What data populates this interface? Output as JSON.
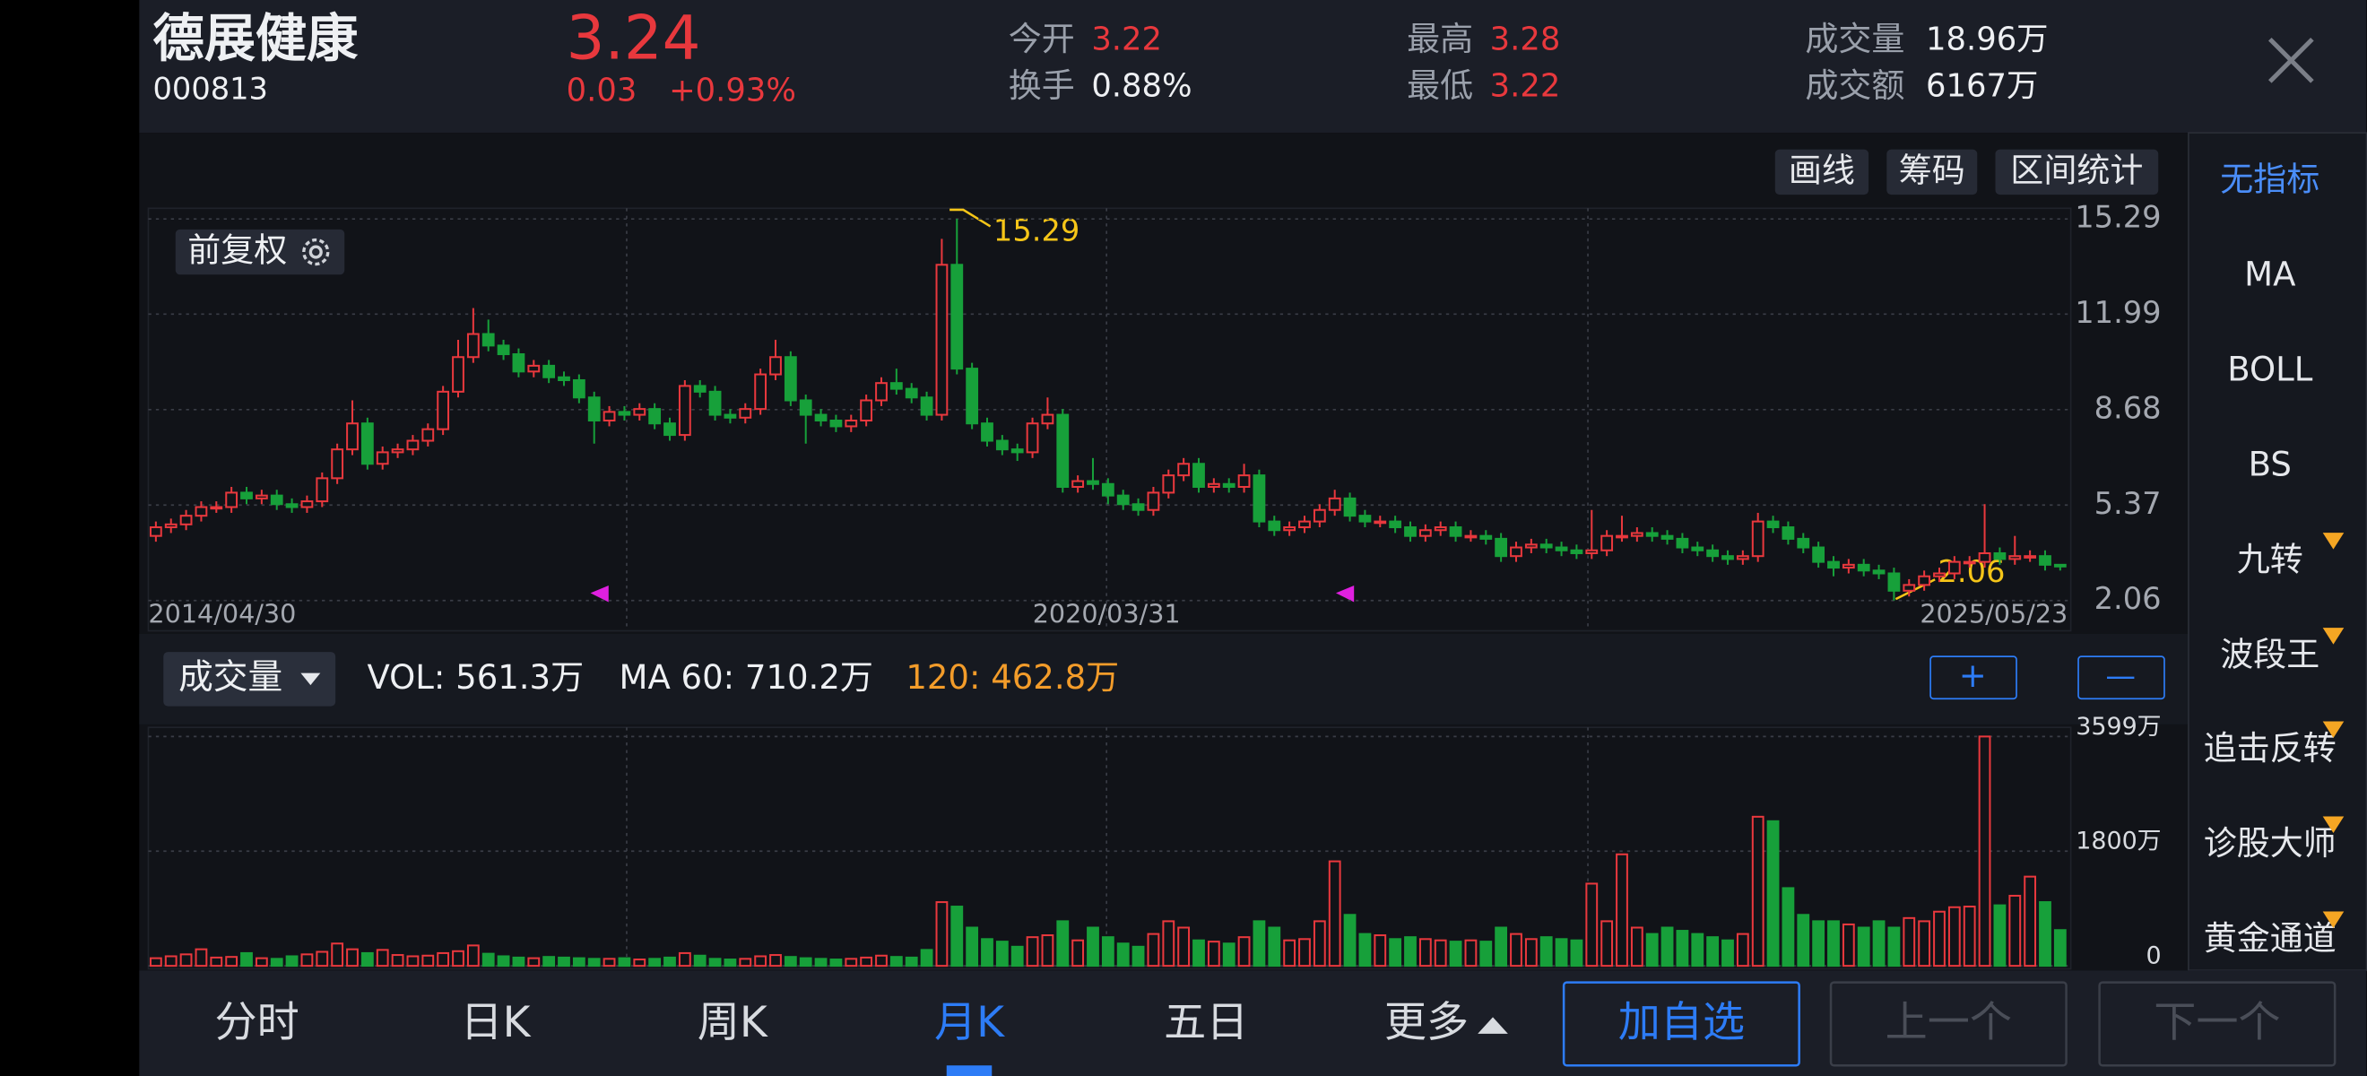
{
  "header": {
    "name": "德展健康",
    "code": "000813",
    "price": "3.24",
    "change": "0.03",
    "change_pct": "+0.93%",
    "stats": [
      {
        "label": "今开",
        "value": "3.22"
      },
      {
        "label": "换手",
        "value": "0.88%"
      },
      {
        "label": "最高",
        "value": "3.28"
      },
      {
        "label": "最低",
        "value": "3.22"
      },
      {
        "label": "成交量",
        "value": "18.96万"
      },
      {
        "label": "成交额",
        "value": "6167万"
      }
    ]
  },
  "toolbar": [
    "画线",
    "筹码",
    "区间统计"
  ],
  "adjust_button": "前复权",
  "indicators": [
    "无指标",
    "MA",
    "BOLL",
    "BS",
    "九转",
    "波段王",
    "追击反转",
    "诊股大师",
    "黄金通道"
  ],
  "volume_header": {
    "selector": "成交量",
    "vol": "VOL: 561.3万",
    "ma60": "MA 60: 710.2万",
    "ma120": "120: 462.8万"
  },
  "volume_controls": [
    "+",
    "—"
  ],
  "tabs": [
    "分时",
    "日K",
    "周K",
    "月K",
    "五日",
    "更多"
  ],
  "actions": [
    "加自选",
    "上一个",
    "下一个"
  ],
  "chart_data": [
    {
      "type": "candlestick",
      "up_color": "#e8383d",
      "down_color": "#17a03a",
      "grid": true,
      "ylim": [
        1.01,
        15.66
      ],
      "yticks": [
        15.29,
        11.99,
        8.68,
        5.37,
        2.06
      ],
      "x_labels": [
        "2014/04/30",
        "2020/03/31",
        "2025/05/23"
      ],
      "annotations": [
        "15.29",
        "2.06"
      ],
      "open": [
        4.3,
        4.6,
        4.7,
        5.0,
        5.3,
        5.3,
        5.8,
        5.6,
        5.7,
        5.4,
        5.3,
        5.5,
        6.3,
        7.3,
        8.2,
        6.8,
        7.2,
        7.3,
        7.6,
        8.0,
        9.3,
        10.5,
        11.3,
        10.9,
        10.6,
        10.0,
        10.2,
        9.8,
        9.7,
        9.1,
        8.3,
        8.6,
        8.5,
        8.7,
        8.2,
        7.8,
        9.5,
        9.3,
        8.5,
        8.4,
        8.7,
        9.9,
        10.5,
        9.0,
        8.5,
        8.3,
        8.1,
        8.3,
        9.0,
        9.6,
        9.4,
        9.1,
        8.5,
        13.7,
        10.1,
        8.2,
        7.6,
        7.3,
        7.2,
        8.2,
        8.5,
        6.0,
        6.2,
        6.1,
        5.7,
        5.4,
        5.2,
        5.8,
        6.4,
        6.8,
        6.0,
        6.1,
        6.0,
        6.4,
        4.8,
        4.5,
        4.6,
        4.8,
        5.2,
        5.6,
        5.0,
        4.8,
        4.8,
        4.6,
        4.3,
        4.5,
        4.6,
        4.3,
        4.3,
        4.2,
        3.6,
        3.9,
        4.0,
        3.9,
        3.8,
        3.7,
        3.8,
        4.3,
        4.3,
        4.4,
        4.3,
        4.2,
        3.9,
        3.8,
        3.6,
        3.5,
        3.6,
        4.8,
        4.6,
        4.2,
        3.9,
        3.4,
        3.2,
        3.3,
        3.1,
        3.0,
        2.4,
        2.6,
        2.9,
        3.0,
        3.4,
        3.4,
        3.7,
        3.5,
        3.6,
        3.6,
        3.3
      ],
      "high": [
        4.8,
        4.9,
        5.2,
        5.5,
        5.5,
        6.0,
        6.0,
        5.9,
        5.9,
        5.6,
        5.7,
        6.5,
        7.5,
        9.0,
        8.4,
        7.4,
        7.5,
        7.8,
        8.2,
        9.5,
        11.1,
        12.2,
        11.8,
        11.1,
        10.8,
        10.4,
        10.4,
        10.0,
        9.9,
        9.3,
        8.8,
        8.8,
        8.9,
        8.9,
        8.4,
        9.7,
        9.7,
        9.5,
        8.7,
        8.9,
        10.1,
        11.1,
        10.7,
        9.2,
        8.7,
        8.5,
        8.5,
        9.2,
        9.8,
        10.1,
        9.6,
        9.3,
        14.6,
        15.29,
        10.3,
        8.4,
        7.8,
        7.5,
        8.4,
        9.1,
        8.7,
        6.4,
        7.0,
        6.3,
        5.9,
        5.6,
        6.0,
        6.6,
        7.0,
        7.0,
        6.3,
        6.3,
        6.8,
        6.6,
        5.0,
        4.8,
        5.0,
        5.4,
        5.9,
        5.8,
        5.2,
        5.0,
        5.0,
        4.8,
        4.7,
        4.8,
        4.8,
        4.5,
        4.5,
        4.4,
        4.1,
        4.2,
        4.2,
        4.1,
        4.0,
        5.2,
        4.5,
        5.0,
        4.6,
        4.6,
        4.5,
        4.4,
        4.1,
        4.0,
        3.8,
        3.8,
        5.1,
        5.0,
        4.8,
        4.4,
        4.1,
        3.6,
        3.5,
        3.5,
        3.3,
        3.2,
        2.8,
        3.1,
        3.2,
        3.6,
        3.6,
        5.4,
        3.9,
        4.3,
        3.8,
        3.8,
        3.28
      ],
      "low": [
        4.1,
        4.4,
        4.5,
        4.8,
        5.1,
        5.1,
        5.4,
        5.4,
        5.2,
        5.1,
        5.1,
        5.3,
        6.1,
        7.1,
        6.6,
        6.6,
        7.0,
        7.1,
        7.4,
        7.8,
        9.1,
        10.3,
        10.7,
        10.4,
        9.8,
        9.8,
        9.6,
        9.5,
        8.9,
        7.5,
        8.1,
        8.3,
        8.3,
        8.0,
        7.6,
        7.6,
        9.1,
        8.3,
        8.2,
        8.2,
        8.5,
        9.7,
        8.8,
        7.5,
        8.1,
        7.9,
        7.9,
        8.1,
        8.8,
        9.2,
        8.9,
        8.3,
        8.3,
        9.9,
        8.0,
        7.4,
        7.1,
        6.9,
        7.0,
        8.0,
        5.8,
        5.8,
        5.9,
        5.4,
        5.2,
        5.0,
        5.0,
        5.6,
        6.2,
        5.8,
        5.8,
        5.8,
        5.8,
        4.6,
        4.3,
        4.3,
        4.4,
        4.6,
        5.0,
        4.8,
        4.6,
        4.6,
        4.4,
        4.1,
        4.1,
        4.3,
        4.1,
        4.1,
        4.0,
        3.4,
        3.4,
        3.7,
        3.7,
        3.6,
        3.5,
        3.5,
        3.6,
        4.1,
        4.1,
        4.1,
        4.0,
        3.7,
        3.6,
        3.4,
        3.3,
        3.3,
        3.4,
        4.4,
        4.0,
        3.7,
        3.2,
        2.9,
        3.0,
        2.9,
        2.8,
        2.06,
        2.2,
        2.4,
        2.7,
        2.8,
        3.2,
        3.2,
        3.3,
        3.3,
        3.4,
        3.1,
        3.1
      ],
      "close": [
        4.6,
        4.7,
        5.0,
        5.3,
        5.3,
        5.8,
        5.6,
        5.7,
        5.4,
        5.3,
        5.5,
        6.3,
        7.3,
        8.2,
        6.8,
        7.2,
        7.3,
        7.6,
        8.0,
        9.3,
        10.5,
        11.3,
        10.9,
        10.6,
        10.0,
        10.2,
        9.8,
        9.7,
        9.1,
        8.3,
        8.6,
        8.5,
        8.7,
        8.2,
        7.8,
        9.5,
        9.3,
        8.5,
        8.4,
        8.7,
        9.9,
        10.5,
        9.0,
        8.5,
        8.3,
        8.1,
        8.3,
        9.0,
        9.6,
        9.4,
        9.1,
        8.5,
        13.7,
        10.1,
        8.2,
        7.6,
        7.3,
        7.2,
        8.2,
        8.5,
        6.0,
        6.2,
        6.1,
        5.7,
        5.4,
        5.2,
        5.8,
        6.4,
        6.8,
        6.0,
        6.1,
        6.0,
        6.4,
        4.8,
        4.5,
        4.6,
        4.8,
        5.2,
        5.6,
        5.0,
        4.8,
        4.8,
        4.6,
        4.3,
        4.5,
        4.6,
        4.3,
        4.3,
        4.2,
        3.6,
        3.9,
        4.0,
        3.9,
        3.8,
        3.7,
        3.8,
        4.3,
        4.3,
        4.4,
        4.3,
        4.2,
        3.9,
        3.8,
        3.6,
        3.5,
        3.6,
        4.8,
        4.6,
        4.2,
        3.9,
        3.4,
        3.2,
        3.3,
        3.1,
        3.0,
        2.4,
        2.6,
        2.9,
        3.0,
        3.4,
        3.4,
        3.7,
        3.5,
        3.6,
        3.6,
        3.3,
        3.24
      ]
    },
    {
      "type": "bar",
      "grid": true,
      "ylim": [
        0,
        3742
      ],
      "yticks": [
        {
          "value": 3599,
          "label": "3599万"
        },
        {
          "value": 1800,
          "label": "1800万"
        },
        0
      ],
      "values": [
        120,
        150,
        180,
        260,
        130,
        140,
        200,
        120,
        110,
        150,
        180,
        220,
        350,
        260,
        200,
        250,
        170,
        150,
        160,
        200,
        230,
        320,
        190,
        150,
        130,
        120,
        140,
        130,
        120,
        110,
        110,
        120,
        100,
        110,
        130,
        200,
        160,
        110,
        100,
        110,
        150,
        170,
        140,
        120,
        110,
        100,
        110,
        130,
        160,
        140,
        130,
        250,
        1000,
        930,
        600,
        420,
        380,
        300,
        450,
        480,
        700,
        400,
        600,
        450,
        350,
        300,
        500,
        700,
        600,
        400,
        380,
        350,
        450,
        700,
        600,
        400,
        420,
        700,
        1640,
        800,
        500,
        480,
        420,
        450,
        420,
        400,
        380,
        400,
        380,
        600,
        500,
        420,
        450,
        420,
        400,
        1290,
        700,
        1750,
        600,
        500,
        600,
        550,
        500,
        450,
        400,
        500,
        2340,
        2270,
        1220,
        800,
        700,
        700,
        650,
        600,
        700,
        600,
        750,
        700,
        850,
        920,
        930,
        3599,
        950,
        1100,
        1400,
        1000,
        561.3
      ]
    }
  ]
}
